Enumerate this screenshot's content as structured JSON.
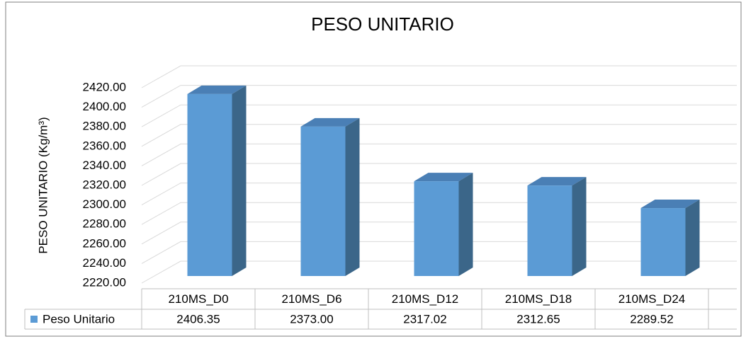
{
  "chart_data": {
    "type": "bar",
    "title": "PESO UNITARIO",
    "ylabel": "PESO UNITARIO (Kg/m³)",
    "categories": [
      "210MS_D0",
      "210MS_D6",
      "210MS_D12",
      "210MS_D18",
      "210MS_D24"
    ],
    "series": [
      {
        "name": "Peso Unitario",
        "color": "#5b9bd5",
        "values": [
          2406.35,
          2373.0,
          2317.02,
          2312.65,
          2289.52
        ],
        "value_labels": [
          "2406.35",
          "2373.00",
          "2317.02",
          "2312.65",
          "2289.52"
        ]
      }
    ],
    "ylim": [
      2220,
      2420
    ],
    "yticks": [
      {
        "value": 2220,
        "label": "2220.00"
      },
      {
        "value": 2240,
        "label": "2240.00"
      },
      {
        "value": 2260,
        "label": "2260.00"
      },
      {
        "value": 2280,
        "label": "2280.00"
      },
      {
        "value": 2300,
        "label": "2300.00"
      },
      {
        "value": 2320,
        "label": "2320.00"
      },
      {
        "value": 2340,
        "label": "2340.00"
      },
      {
        "value": 2360,
        "label": "2360.00"
      },
      {
        "value": 2380,
        "label": "2380.00"
      },
      {
        "value": 2400,
        "label": "2400.00"
      },
      {
        "value": 2420,
        "label": "2420.00"
      }
    ],
    "grid": true
  }
}
